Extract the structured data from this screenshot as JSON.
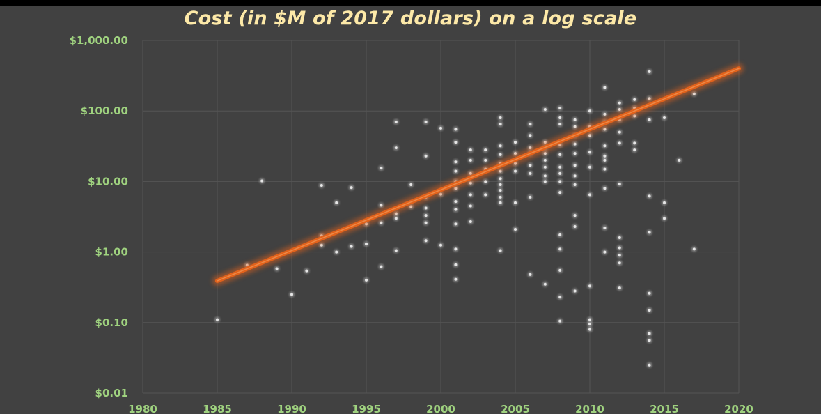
{
  "chart_data": {
    "type": "scatter",
    "title": "Cost (in $M of 2017 dollars) on a log scale",
    "xlabel": "",
    "ylabel": "",
    "xlim": [
      1980,
      2020
    ],
    "ylim": [
      0.01,
      1000
    ],
    "y_scale": "log",
    "grid": true,
    "x_ticks": [
      {
        "value": 1980,
        "label": "1980"
      },
      {
        "value": 1985,
        "label": "1985"
      },
      {
        "value": 1990,
        "label": "1990"
      },
      {
        "value": 1995,
        "label": "1995"
      },
      {
        "value": 2000,
        "label": "2000"
      },
      {
        "value": 2005,
        "label": "2005"
      },
      {
        "value": 2010,
        "label": "2010"
      },
      {
        "value": 2015,
        "label": "2015"
      },
      {
        "value": 2020,
        "label": "2020"
      }
    ],
    "y_ticks": [
      {
        "value": 1000,
        "label": "$1,000.00"
      },
      {
        "value": 100,
        "label": "$100.00"
      },
      {
        "value": 10,
        "label": "$10.00"
      },
      {
        "value": 1,
        "label": "$1.00"
      },
      {
        "value": 0.1,
        "label": "$0.10"
      },
      {
        "value": 0.01,
        "label": "$0.01"
      }
    ],
    "colors": {
      "points": "#e6e6e6",
      "trendline": "#e2621b",
      "background": "#414141",
      "grid": "#555555",
      "tick_labels": "#9fd27f",
      "title": "#fde9a8"
    },
    "trendline": {
      "x": [
        1985,
        2020
      ],
      "y": [
        0.39,
        400
      ]
    },
    "points": [
      [
        1985,
        0.11
      ],
      [
        1987,
        0.65
      ],
      [
        1988,
        10.2
      ],
      [
        1989,
        0.58
      ],
      [
        1990,
        0.25
      ],
      [
        1991,
        0.54
      ],
      [
        1992,
        8.8
      ],
      [
        1992,
        1.7
      ],
      [
        1992,
        1.25
      ],
      [
        1993,
        5.0
      ],
      [
        1993,
        1.0
      ],
      [
        1994,
        8.2
      ],
      [
        1994,
        1.2
      ],
      [
        1995,
        1.3
      ],
      [
        1995,
        0.4
      ],
      [
        1995,
        2.5
      ],
      [
        1996,
        15.5
      ],
      [
        1996,
        4.6
      ],
      [
        1996,
        2.6
      ],
      [
        1996,
        0.62
      ],
      [
        1997,
        70
      ],
      [
        1997,
        30
      ],
      [
        1997,
        3.5
      ],
      [
        1997,
        3.0
      ],
      [
        1997,
        1.05
      ],
      [
        1998,
        9.0
      ],
      [
        1998,
        4.4
      ],
      [
        1999,
        70
      ],
      [
        1999,
        23
      ],
      [
        1999,
        6.0
      ],
      [
        1999,
        4.2
      ],
      [
        1999,
        3.3
      ],
      [
        1999,
        2.6
      ],
      [
        1999,
        1.45
      ],
      [
        2000,
        57
      ],
      [
        2000,
        6.6
      ],
      [
        2000,
        1.25
      ],
      [
        2001,
        55
      ],
      [
        2001,
        36
      ],
      [
        2001,
        19
      ],
      [
        2001,
        14
      ],
      [
        2001,
        10
      ],
      [
        2001,
        8
      ],
      [
        2001,
        5.2
      ],
      [
        2001,
        4.0
      ],
      [
        2001,
        2.5
      ],
      [
        2001,
        1.1
      ],
      [
        2001,
        0.66
      ],
      [
        2001,
        0.41
      ],
      [
        2002,
        28
      ],
      [
        2002,
        20
      ],
      [
        2002,
        13
      ],
      [
        2002,
        9.5
      ],
      [
        2002,
        6.5
      ],
      [
        2002,
        4.5
      ],
      [
        2002,
        2.7
      ],
      [
        2003,
        28
      ],
      [
        2003,
        20
      ],
      [
        2003,
        15
      ],
      [
        2003,
        10
      ],
      [
        2003,
        6.5
      ],
      [
        2004,
        80
      ],
      [
        2004,
        65
      ],
      [
        2004,
        32
      ],
      [
        2004,
        24
      ],
      [
        2004,
        18
      ],
      [
        2004,
        14
      ],
      [
        2004,
        11
      ],
      [
        2004,
        9
      ],
      [
        2004,
        7.5
      ],
      [
        2004,
        6
      ],
      [
        2004,
        5
      ],
      [
        2004,
        1.05
      ],
      [
        2005,
        36
      ],
      [
        2005,
        25
      ],
      [
        2005,
        18
      ],
      [
        2005,
        14
      ],
      [
        2005,
        5.0
      ],
      [
        2005,
        2.1
      ],
      [
        2006,
        65
      ],
      [
        2006,
        45
      ],
      [
        2006,
        30
      ],
      [
        2006,
        25
      ],
      [
        2006,
        17
      ],
      [
        2006,
        13
      ],
      [
        2006,
        6
      ],
      [
        2006,
        0.48
      ],
      [
        2007,
        105
      ],
      [
        2007,
        36
      ],
      [
        2007,
        30
      ],
      [
        2007,
        25
      ],
      [
        2007,
        20
      ],
      [
        2007,
        16
      ],
      [
        2007,
        12
      ],
      [
        2007,
        10
      ],
      [
        2007,
        0.35
      ],
      [
        2008,
        110
      ],
      [
        2008,
        80
      ],
      [
        2008,
        65
      ],
      [
        2008,
        33
      ],
      [
        2008,
        24
      ],
      [
        2008,
        16
      ],
      [
        2008,
        13
      ],
      [
        2008,
        10
      ],
      [
        2008,
        7
      ],
      [
        2008,
        1.75
      ],
      [
        2008,
        1.1
      ],
      [
        2008,
        0.55
      ],
      [
        2008,
        0.23
      ],
      [
        2008,
        0.105
      ],
      [
        2009,
        75
      ],
      [
        2009,
        60
      ],
      [
        2009,
        45
      ],
      [
        2009,
        34
      ],
      [
        2009,
        25
      ],
      [
        2009,
        17
      ],
      [
        2009,
        12
      ],
      [
        2009,
        9
      ],
      [
        2009,
        3.3
      ],
      [
        2009,
        2.3
      ],
      [
        2009,
        0.28
      ],
      [
        2010,
        100
      ],
      [
        2010,
        60
      ],
      [
        2010,
        45
      ],
      [
        2010,
        26
      ],
      [
        2010,
        16
      ],
      [
        2010,
        6.5
      ],
      [
        2010,
        0.33
      ],
      [
        2010,
        0.11
      ],
      [
        2010,
        0.095
      ],
      [
        2010,
        0.08
      ],
      [
        2011,
        215
      ],
      [
        2011,
        90
      ],
      [
        2011,
        70
      ],
      [
        2011,
        55
      ],
      [
        2011,
        32
      ],
      [
        2011,
        23
      ],
      [
        2011,
        20
      ],
      [
        2011,
        15
      ],
      [
        2011,
        8
      ],
      [
        2011,
        2.2
      ],
      [
        2011,
        1.0
      ],
      [
        2012,
        130
      ],
      [
        2012,
        105
      ],
      [
        2012,
        75
      ],
      [
        2012,
        50
      ],
      [
        2012,
        35
      ],
      [
        2012,
        9.2
      ],
      [
        2012,
        1.6
      ],
      [
        2012,
        1.15
      ],
      [
        2012,
        0.9
      ],
      [
        2012,
        0.7
      ],
      [
        2012,
        0.31
      ],
      [
        2013,
        145
      ],
      [
        2013,
        110
      ],
      [
        2013,
        85
      ],
      [
        2013,
        35
      ],
      [
        2013,
        28
      ],
      [
        2014,
        360
      ],
      [
        2014,
        150
      ],
      [
        2014,
        75
      ],
      [
        2014,
        6.2
      ],
      [
        2014,
        1.9
      ],
      [
        2014,
        0.26
      ],
      [
        2014,
        0.15
      ],
      [
        2014,
        0.07
      ],
      [
        2014,
        0.056
      ],
      [
        2014,
        0.025
      ],
      [
        2015,
        80
      ],
      [
        2015,
        5.0
      ],
      [
        2015,
        3.0
      ],
      [
        2016,
        20
      ],
      [
        2017,
        175
      ],
      [
        2017,
        1.1
      ]
    ]
  }
}
